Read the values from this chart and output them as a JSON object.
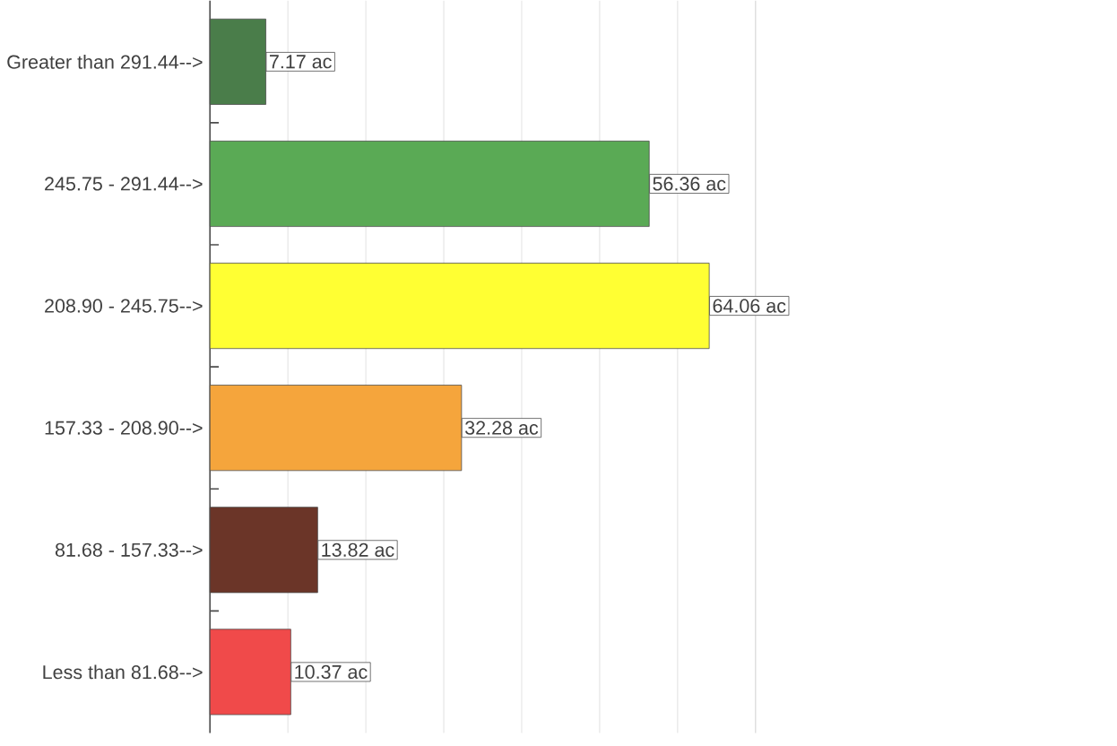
{
  "chart_data": {
    "type": "bar",
    "orientation": "horizontal",
    "categories": [
      "Greater than 291.44-->",
      "245.75 - 291.44-->",
      "208.90 - 245.75-->",
      "157.33 - 208.90-->",
      "81.68 - 157.33-->",
      "Less than 81.68-->"
    ],
    "values": [
      7.17,
      56.36,
      64.06,
      32.28,
      13.82,
      10.37
    ],
    "value_labels": [
      "7.17 ac",
      "56.36 ac",
      "64.06 ac",
      "32.28 ac",
      "13.82 ac",
      "10.37 ac"
    ],
    "colors": [
      "#4a7d4a",
      "#5aaa55",
      "#ffff33",
      "#f5a53c",
      "#6b3528",
      "#f04a4a"
    ],
    "xlim": [
      0,
      70
    ],
    "xticks": [
      {
        "value": 0,
        "label": null
      },
      {
        "value": 10,
        "label": null
      },
      {
        "value": 20,
        "label": null
      },
      {
        "value": 30,
        "label": null
      },
      {
        "value": 40,
        "label": null
      },
      {
        "value": 50,
        "label": null
      },
      {
        "value": 60,
        "label": null
      },
      {
        "value": 70,
        "label": null
      }
    ],
    "grid": "x",
    "tick_labels": "y"
  }
}
